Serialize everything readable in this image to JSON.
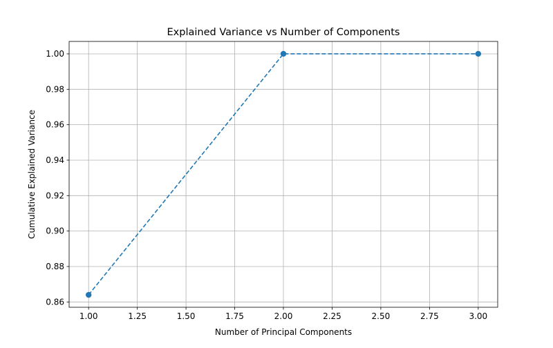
{
  "chart_data": {
    "type": "line",
    "title": "Explained Variance vs Number of Components",
    "xlabel": "Number of Principal Components",
    "ylabel": "Cumulative Explained Variance",
    "xlim": [
      0.9,
      3.1
    ],
    "ylim": [
      0.857,
      1.007
    ],
    "xticks": [
      1.0,
      1.25,
      1.5,
      1.75,
      2.0,
      2.25,
      2.5,
      2.75,
      3.0
    ],
    "xtick_labels": [
      "1.00",
      "1.25",
      "1.50",
      "1.75",
      "2.00",
      "2.25",
      "2.50",
      "2.75",
      "3.00"
    ],
    "yticks": [
      0.86,
      0.88,
      0.9,
      0.92,
      0.94,
      0.96,
      0.98,
      1.0
    ],
    "ytick_labels": [
      "0.86",
      "0.88",
      "0.90",
      "0.92",
      "0.94",
      "0.96",
      "0.98",
      "1.00"
    ],
    "grid": true,
    "line_style": "dashed",
    "marker": "circle",
    "series": [
      {
        "x": [
          1,
          2,
          3
        ],
        "y": [
          0.864,
          1.0,
          1.0
        ],
        "color": "#1f77b4"
      }
    ],
    "colors": {
      "grid": "#b0b0b0",
      "axes": "#000000",
      "line": "#1f77b4"
    }
  }
}
